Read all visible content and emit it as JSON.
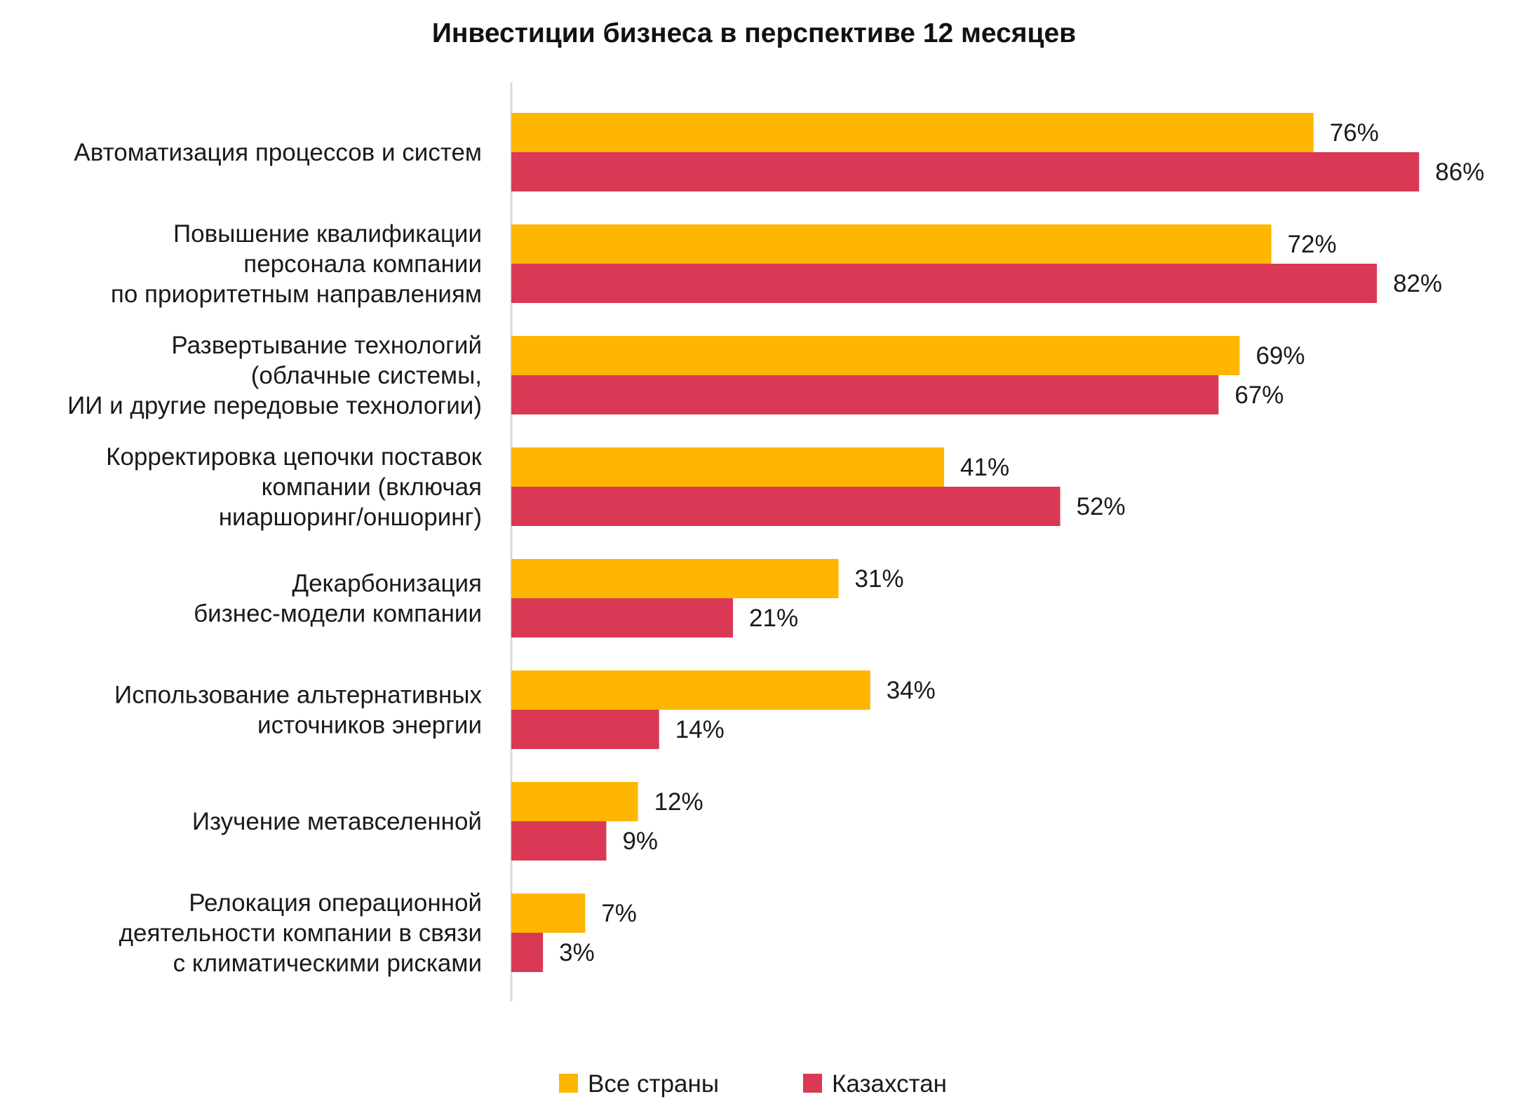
{
  "chart_data": {
    "type": "bar",
    "orientation": "horizontal",
    "title": "Инвестиции бизнеса в перспективе 12 месяцев",
    "categories": [
      [
        "Автоматизация процессов и систем"
      ],
      [
        "Повышение квалификации",
        "персонала компании",
        "по приоритетным направлениям"
      ],
      [
        "Развертывание технологий",
        "(облачные системы,",
        "ИИ и другие передовые технологии)"
      ],
      [
        "Корректировка цепочки поставок",
        "компании (включая",
        "ниаршоринг/оншоринг)"
      ],
      [
        "Декарбонизация",
        "бизнес-модели компании"
      ],
      [
        "Использование альтернативных",
        "источников энергии"
      ],
      [
        "Изучение метавселенной"
      ],
      [
        "Релокация операционной",
        "деятельности компании в связи",
        "с климатическими рисками"
      ]
    ],
    "series": [
      {
        "name": "Все страны",
        "color": "#FFB600",
        "values": [
          76,
          72,
          69,
          41,
          31,
          34,
          12,
          7
        ],
        "labels": [
          "76%",
          "72%",
          "69%",
          "41%",
          "31%",
          "34%",
          "12%",
          "7%"
        ]
      },
      {
        "name": "Казахстан",
        "color": "#D93954",
        "values": [
          86,
          82,
          67,
          52,
          21,
          14,
          9,
          3
        ],
        "labels": [
          "86%",
          "82%",
          "67%",
          "52%",
          "21%",
          "14%",
          "9%",
          "3%"
        ]
      }
    ],
    "value_unit": "%",
    "xlim": [
      0,
      100
    ],
    "grid": false,
    "legend_position": "bottom-center",
    "axis_color": "#D9D9D9"
  }
}
